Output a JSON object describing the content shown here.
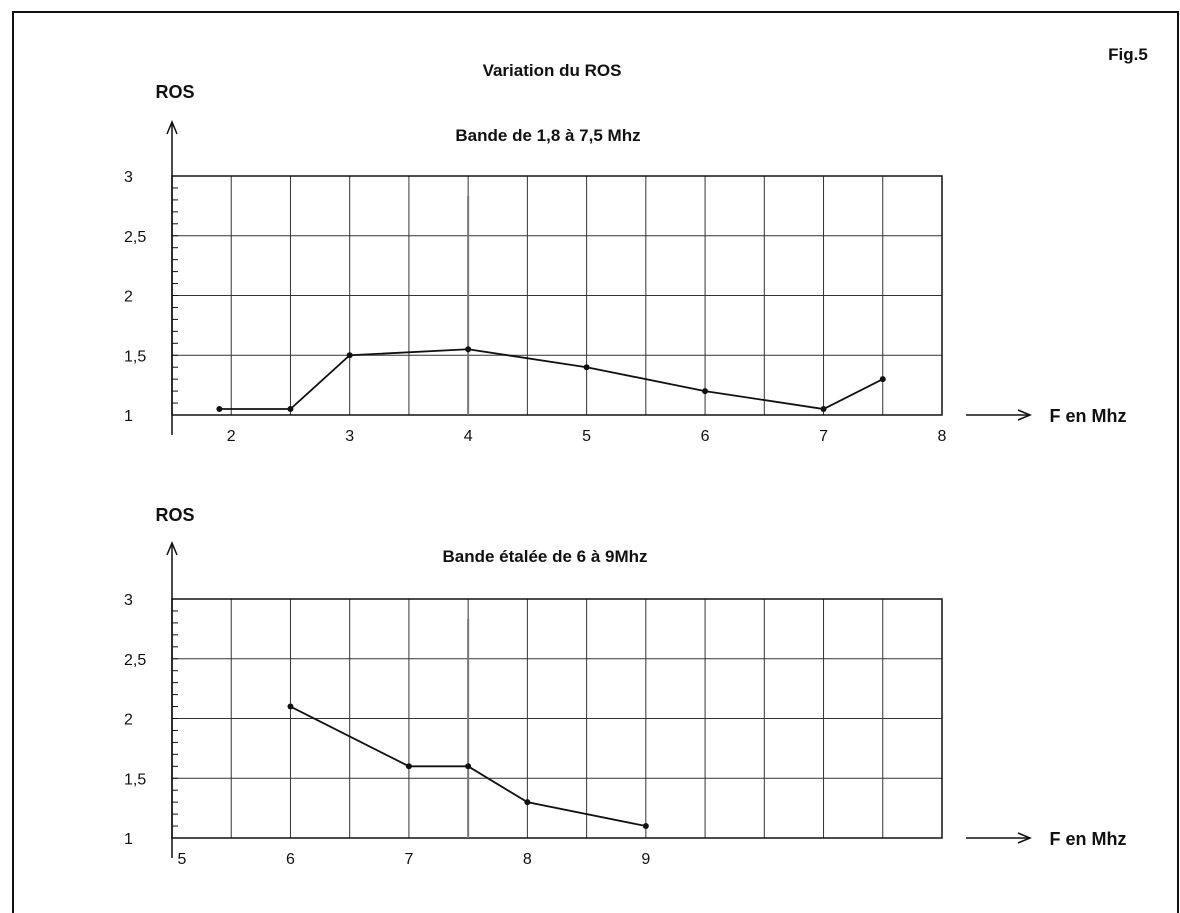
{
  "figure": {
    "title": "Variation du ROS",
    "fig_label": "Fig.5"
  },
  "colors": {
    "line": "#111111",
    "grid": "#333333",
    "background": "#ffffff"
  },
  "chart_data": [
    {
      "type": "line",
      "subtitle": "Bande de 1,8 à 7,5 Mhz",
      "ylabel": "ROS",
      "xlabel": "F en Mhz",
      "xlim": [
        1.5,
        8
      ],
      "ylim": [
        1,
        3
      ],
      "x_ticks": [
        "2",
        "3",
        "4",
        "5",
        "6",
        "7",
        "8"
      ],
      "y_ticks": [
        "1",
        "1,5",
        "2",
        "2,5",
        "3"
      ],
      "grid": true,
      "marker_line_x": 4,
      "series": [
        {
          "x": [
            1.9,
            2.5,
            3,
            4,
            5,
            6,
            7,
            7.5
          ],
          "y": [
            1.05,
            1.05,
            1.5,
            1.55,
            1.4,
            1.2,
            1.05,
            1.3
          ]
        }
      ]
    },
    {
      "type": "line",
      "subtitle": "Bande étalée de 6 à 9Mhz",
      "ylabel": "ROS",
      "xlabel": "F en Mhz",
      "xlim": [
        5,
        11.5
      ],
      "ylim": [
        1,
        3
      ],
      "x_ticks": [
        "5",
        "6",
        "7",
        "8",
        "9"
      ],
      "y_ticks": [
        "1",
        "1,5",
        "2",
        "2,5",
        "3"
      ],
      "grid": true,
      "marker_line_x": 7.5,
      "series": [
        {
          "x": [
            6,
            7,
            7.5,
            8,
            9
          ],
          "y": [
            2.1,
            1.6,
            1.6,
            1.3,
            1.1
          ]
        }
      ]
    }
  ]
}
